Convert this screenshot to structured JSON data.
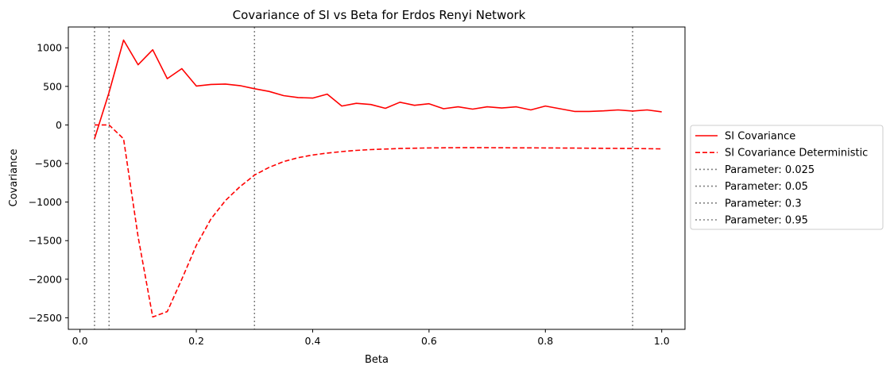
{
  "chart_data": {
    "type": "line",
    "title": "Covariance of SI vs Beta for Erdos Renyi Network",
    "xlabel": "Beta",
    "ylabel": "Covariance",
    "xlim": [
      -0.02,
      1.04
    ],
    "ylim": [
      -2650,
      1270
    ],
    "xticks": [
      0.0,
      0.2,
      0.4,
      0.6,
      0.8,
      1.0
    ],
    "xtick_labels": [
      "0.0",
      "0.2",
      "0.4",
      "0.6",
      "0.8",
      "1.0"
    ],
    "yticks": [
      1000,
      500,
      0,
      -500,
      -1000,
      -1500,
      -2000,
      -2500
    ],
    "ytick_labels": [
      "1000",
      "500",
      "0",
      "−500",
      "−1000",
      "−1500",
      "−2000",
      "−2500"
    ],
    "grid": false,
    "legend_position": "outside-right",
    "series": [
      {
        "name": "SI Covariance",
        "color": "#ff0000",
        "style": "solid",
        "x": [
          0.025,
          0.05,
          0.075,
          0.1,
          0.125,
          0.15,
          0.175,
          0.2,
          0.225,
          0.25,
          0.275,
          0.3,
          0.325,
          0.35,
          0.375,
          0.4,
          0.425,
          0.45,
          0.475,
          0.5,
          0.525,
          0.55,
          0.575,
          0.6,
          0.625,
          0.65,
          0.675,
          0.7,
          0.725,
          0.75,
          0.775,
          0.8,
          0.825,
          0.85,
          0.875,
          0.9,
          0.925,
          0.95,
          0.975,
          1.0
        ],
        "y": [
          -180,
          420,
          1100,
          780,
          975,
          600,
          730,
          505,
          525,
          530,
          510,
          470,
          435,
          380,
          355,
          348,
          400,
          245,
          280,
          265,
          215,
          295,
          255,
          275,
          210,
          235,
          205,
          235,
          220,
          235,
          195,
          245,
          210,
          175,
          175,
          182,
          195,
          180,
          195,
          170
        ]
      },
      {
        "name": "SI Covariance Deterministic",
        "color": "#ff0000",
        "style": "dashed",
        "x": [
          0.025,
          0.05,
          0.075,
          0.1,
          0.125,
          0.15,
          0.175,
          0.2,
          0.225,
          0.25,
          0.275,
          0.3,
          0.325,
          0.35,
          0.375,
          0.4,
          0.425,
          0.45,
          0.475,
          0.5,
          0.55,
          0.6,
          0.65,
          0.7,
          0.75,
          0.8,
          0.85,
          0.9,
          0.95,
          1.0
        ],
        "y": [
          0,
          0,
          -180,
          -1450,
          -2490,
          -2420,
          -2000,
          -1560,
          -1220,
          -980,
          -800,
          -650,
          -550,
          -475,
          -425,
          -390,
          -365,
          -345,
          -330,
          -320,
          -305,
          -298,
          -295,
          -295,
          -297,
          -298,
          -300,
          -303,
          -305,
          -310
        ]
      }
    ],
    "vlines": [
      {
        "name": "Parameter: 0.025",
        "x": 0.025,
        "color": "#808080",
        "style": "dotted"
      },
      {
        "name": "Parameter: 0.05",
        "x": 0.05,
        "color": "#808080",
        "style": "dotted"
      },
      {
        "name": "Parameter: 0.3",
        "x": 0.3,
        "color": "#808080",
        "style": "dotted"
      },
      {
        "name": "Parameter: 0.95",
        "x": 0.95,
        "color": "#808080",
        "style": "dotted"
      }
    ]
  }
}
